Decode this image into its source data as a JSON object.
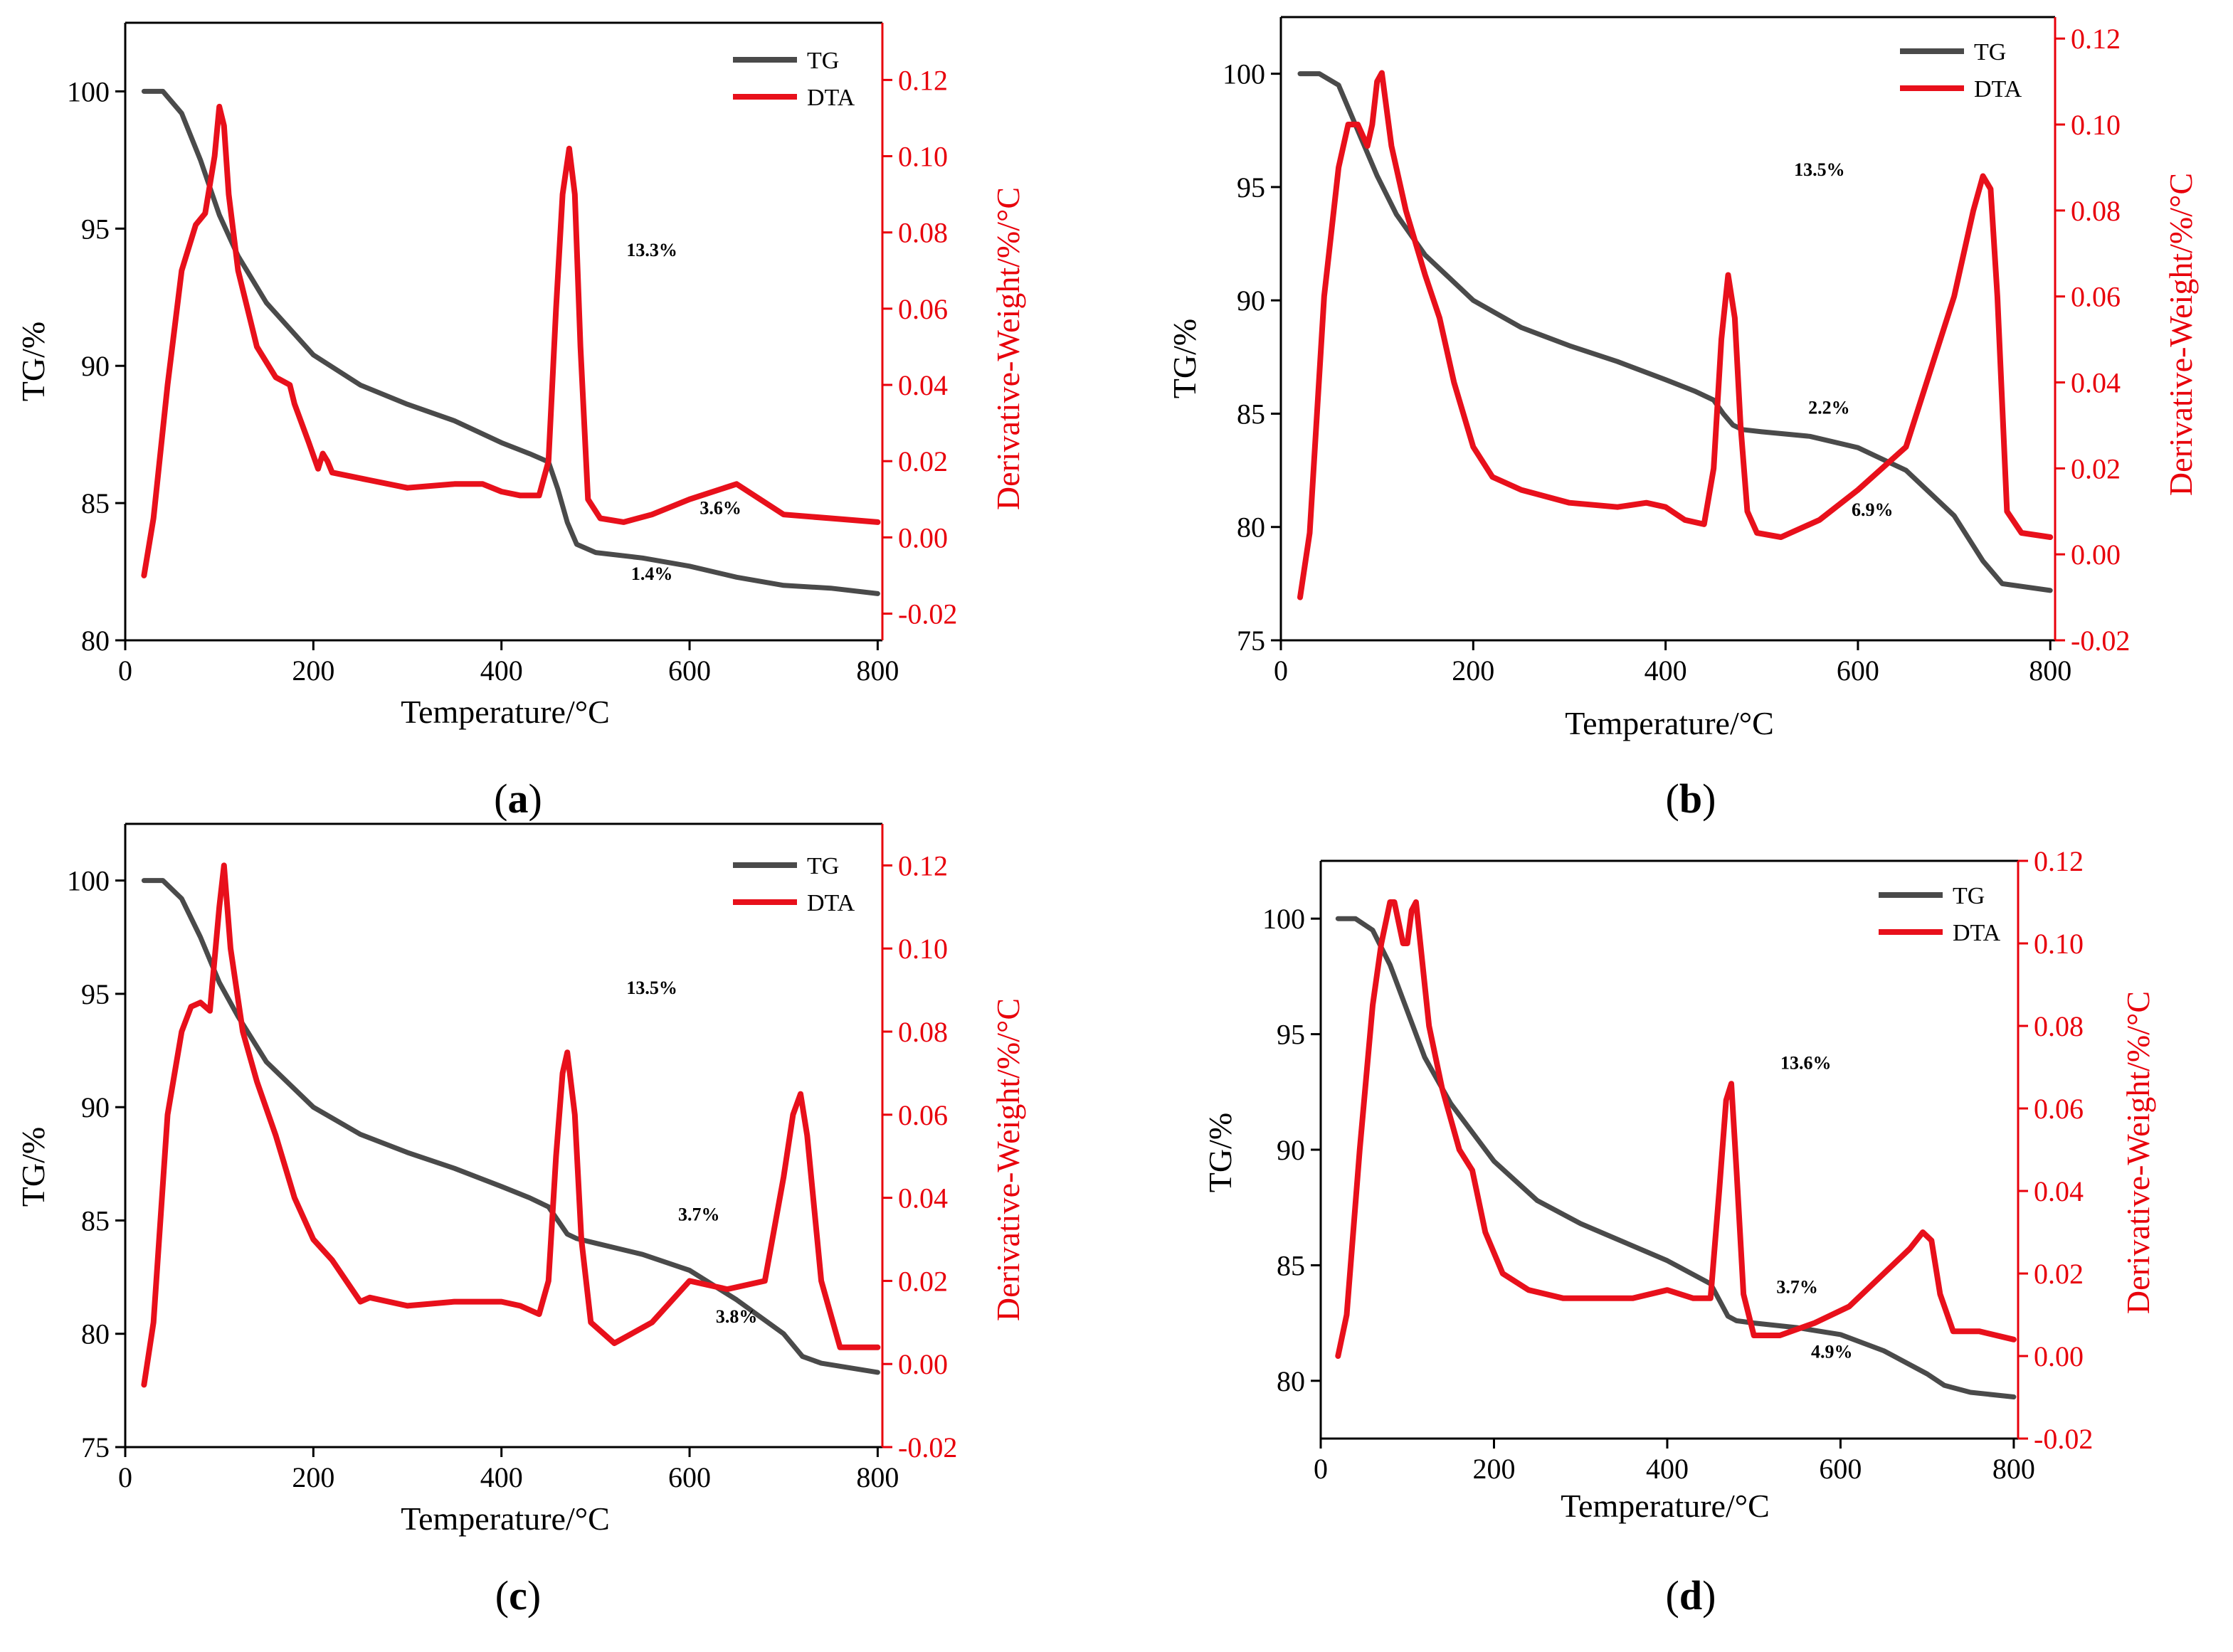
{
  "colors": {
    "tg": "#4a4a4a",
    "dta": "#e8101b",
    "axis": "#000000",
    "right_axis": "#e8000b"
  },
  "chart_data": [
    {
      "panel": "a",
      "caption": {
        "open": "(",
        "letter": "a",
        "close": ")"
      },
      "type": "line",
      "xlabel": "Temperature/°C",
      "ylabel_left": "TG/%",
      "ylabel_right": "Derivative-Weight/%/°C",
      "xlim": [
        0,
        805
      ],
      "ylim_left": [
        80,
        102.5
      ],
      "ylim_right": [
        -0.027,
        0.135
      ],
      "xticks": [
        0,
        200,
        400,
        600,
        800
      ],
      "yticks_left": [
        80,
        85,
        90,
        95,
        100
      ],
      "yticks_right": [
        "-0.02",
        "0.00",
        "0.02",
        "0.04",
        "0.06",
        "0.08",
        "0.10",
        "0.12"
      ],
      "legend": [
        "TG",
        "DTA"
      ],
      "series": [
        {
          "name": "TG",
          "axis": "left",
          "x": [
            20,
            40,
            60,
            80,
            100,
            120,
            150,
            200,
            250,
            300,
            350,
            400,
            430,
            450,
            460,
            470,
            480,
            500,
            550,
            600,
            650,
            700,
            750,
            800
          ],
          "y": [
            100,
            100,
            99.2,
            97.5,
            95.5,
            94,
            92.3,
            90.4,
            89.3,
            88.6,
            88,
            87.2,
            86.8,
            86.5,
            85.5,
            84.3,
            83.5,
            83.2,
            83,
            82.7,
            82.3,
            82,
            81.9,
            81.7
          ]
        },
        {
          "name": "DTA",
          "axis": "right",
          "x": [
            20,
            30,
            45,
            60,
            75,
            85,
            95,
            100,
            105,
            110,
            120,
            140,
            160,
            175,
            180,
            195,
            205,
            210,
            215,
            220,
            240,
            260,
            300,
            350,
            380,
            400,
            420,
            440,
            450,
            458,
            465,
            472,
            478,
            484,
            492,
            505,
            530,
            560,
            600,
            650,
            700,
            750,
            800
          ],
          "y": [
            -0.01,
            0.005,
            0.04,
            0.07,
            0.082,
            0.085,
            0.1,
            0.113,
            0.108,
            0.09,
            0.07,
            0.05,
            0.042,
            0.04,
            0.035,
            0.025,
            0.018,
            0.022,
            0.02,
            0.017,
            0.016,
            0.015,
            0.013,
            0.014,
            0.014,
            0.012,
            0.011,
            0.011,
            0.02,
            0.06,
            0.09,
            0.102,
            0.09,
            0.05,
            0.01,
            0.005,
            0.004,
            0.006,
            0.01,
            0.014,
            0.006,
            0.005,
            0.004
          ]
        }
      ],
      "annotations": [
        {
          "label": "13.3%",
          "x": 560,
          "y": 94
        },
        {
          "label": "3.6%",
          "x": 633,
          "y": 84.6
        },
        {
          "label": "1.4%",
          "x": 560,
          "y": 82.2
        }
      ]
    },
    {
      "panel": "b",
      "caption": {
        "open": "(",
        "letter": "b",
        "close": ")"
      },
      "type": "line",
      "xlabel": "Temperature/°C",
      "ylabel_left": "TG/%",
      "ylabel_right": "Derivative-Weight/%/°C",
      "xlim": [
        0,
        805
      ],
      "ylim_left": [
        75,
        102.5
      ],
      "ylim_right": [
        -0.02,
        0.125
      ],
      "xticks": [
        0,
        200,
        400,
        600,
        800
      ],
      "yticks_left": [
        75,
        80,
        85,
        90,
        95,
        100
      ],
      "yticks_right": [
        "-0.02",
        "0.00",
        "0.02",
        "0.04",
        "0.06",
        "0.08",
        "0.10",
        "0.12"
      ],
      "legend": [
        "TG",
        "DTA"
      ],
      "series": [
        {
          "name": "TG",
          "axis": "left",
          "x": [
            20,
            40,
            60,
            80,
            100,
            120,
            150,
            200,
            250,
            300,
            350,
            400,
            430,
            450,
            460,
            470,
            480,
            500,
            550,
            600,
            650,
            700,
            730,
            750,
            800
          ],
          "y": [
            100,
            100,
            99.5,
            97.5,
            95.5,
            93.8,
            92,
            90,
            88.8,
            88,
            87.3,
            86.5,
            86,
            85.6,
            85,
            84.5,
            84.3,
            84.2,
            84,
            83.5,
            82.5,
            80.5,
            78.5,
            77.5,
            77.2
          ]
        },
        {
          "name": "DTA",
          "axis": "right",
          "x": [
            20,
            30,
            45,
            60,
            70,
            80,
            90,
            95,
            100,
            105,
            115,
            130,
            150,
            165,
            180,
            200,
            220,
            250,
            300,
            350,
            380,
            400,
            420,
            440,
            450,
            458,
            465,
            472,
            478,
            485,
            495,
            520,
            560,
            600,
            650,
            700,
            720,
            730,
            738,
            745,
            755,
            770,
            800
          ],
          "y": [
            -0.01,
            0.005,
            0.06,
            0.09,
            0.1,
            0.1,
            0.095,
            0.1,
            0.11,
            0.112,
            0.095,
            0.08,
            0.065,
            0.055,
            0.04,
            0.025,
            0.018,
            0.015,
            0.012,
            0.011,
            0.012,
            0.011,
            0.008,
            0.007,
            0.02,
            0.05,
            0.065,
            0.055,
            0.03,
            0.01,
            0.005,
            0.004,
            0.008,
            0.015,
            0.025,
            0.06,
            0.08,
            0.088,
            0.085,
            0.06,
            0.01,
            0.005,
            0.004
          ]
        }
      ],
      "annotations": [
        {
          "label": "13.5%",
          "x": 560,
          "y": 95.5
        },
        {
          "label": "2.2%",
          "x": 570,
          "y": 85
        },
        {
          "label": "6.9%",
          "x": 615,
          "y": 80.5
        }
      ]
    },
    {
      "panel": "c",
      "caption": {
        "open": "(",
        "letter": "c",
        "close": ")"
      },
      "type": "line",
      "xlabel": "Temperature/°C",
      "ylabel_left": "TG/%",
      "ylabel_right": "Derivative-Weight/%/°C",
      "xlim": [
        0,
        805
      ],
      "ylim_left": [
        75,
        102.5
      ],
      "ylim_right": [
        -0.02,
        0.13
      ],
      "xticks": [
        0,
        200,
        400,
        600,
        800
      ],
      "yticks_left": [
        75,
        80,
        85,
        90,
        95,
        100
      ],
      "yticks_right": [
        "-0.02",
        "0.00",
        "0.02",
        "0.04",
        "0.06",
        "0.08",
        "0.10",
        "0.12"
      ],
      "legend": [
        "TG",
        "DTA"
      ],
      "series": [
        {
          "name": "TG",
          "axis": "left",
          "x": [
            20,
            40,
            60,
            80,
            100,
            120,
            150,
            200,
            250,
            300,
            350,
            400,
            430,
            450,
            460,
            470,
            480,
            500,
            550,
            600,
            650,
            700,
            720,
            740,
            800
          ],
          "y": [
            100,
            100,
            99.2,
            97.5,
            95.5,
            94,
            92,
            90,
            88.8,
            88,
            87.3,
            86.5,
            86,
            85.6,
            85,
            84.4,
            84.2,
            84,
            83.5,
            82.8,
            81.5,
            80,
            79,
            78.7,
            78.3
          ]
        },
        {
          "name": "DTA",
          "axis": "right",
          "x": [
            20,
            30,
            45,
            60,
            70,
            80,
            90,
            100,
            105,
            112,
            125,
            140,
            160,
            180,
            200,
            220,
            250,
            260,
            300,
            350,
            400,
            420,
            440,
            450,
            458,
            465,
            470,
            478,
            485,
            495,
            520,
            560,
            600,
            640,
            680,
            700,
            710,
            718,
            725,
            740,
            760,
            800
          ],
          "y": [
            -0.005,
            0.01,
            0.06,
            0.08,
            0.086,
            0.087,
            0.085,
            0.11,
            0.12,
            0.1,
            0.08,
            0.068,
            0.055,
            0.04,
            0.03,
            0.025,
            0.015,
            0.016,
            0.014,
            0.015,
            0.015,
            0.014,
            0.012,
            0.02,
            0.05,
            0.07,
            0.075,
            0.06,
            0.03,
            0.01,
            0.005,
            0.01,
            0.02,
            0.018,
            0.02,
            0.045,
            0.06,
            0.065,
            0.055,
            0.02,
            0.004,
            0.004
          ]
        }
      ],
      "annotations": [
        {
          "label": "13.5%",
          "x": 560,
          "y": 95
        },
        {
          "label": "3.7%",
          "x": 610,
          "y": 85
        },
        {
          "label": "3.8%",
          "x": 650,
          "y": 80.5
        }
      ]
    },
    {
      "panel": "d",
      "caption": {
        "open": "(",
        "letter": "d",
        "close": ")"
      },
      "type": "line",
      "xlabel": "Temperature/°C",
      "ylabel_left": "TG/%",
      "ylabel_right": "Derivative-Weight/%/°C",
      "xlim": [
        0,
        805
      ],
      "ylim_left": [
        77.5,
        102.5
      ],
      "ylim_right": [
        -0.02,
        0.12
      ],
      "xticks": [
        0,
        200,
        400,
        600,
        800
      ],
      "yticks_left": [
        80,
        85,
        90,
        95,
        100
      ],
      "yticks_right": [
        "-0.02",
        "0.00",
        "0.02",
        "0.04",
        "0.06",
        "0.08",
        "0.10",
        "0.12"
      ],
      "legend": [
        "TG",
        "DTA"
      ],
      "series": [
        {
          "name": "TG",
          "axis": "left",
          "x": [
            20,
            40,
            60,
            80,
            100,
            120,
            150,
            200,
            250,
            300,
            350,
            400,
            430,
            450,
            460,
            470,
            480,
            500,
            550,
            600,
            650,
            700,
            720,
            750,
            800
          ],
          "y": [
            100,
            100,
            99.5,
            98,
            96,
            94,
            92,
            89.5,
            87.8,
            86.8,
            86,
            85.2,
            84.6,
            84.2,
            83.5,
            82.8,
            82.6,
            82.5,
            82.3,
            82,
            81.3,
            80.3,
            79.8,
            79.5,
            79.3
          ]
        },
        {
          "name": "DTA",
          "axis": "right",
          "x": [
            20,
            30,
            45,
            60,
            70,
            80,
            85,
            90,
            95,
            100,
            105,
            110,
            115,
            125,
            140,
            160,
            175,
            190,
            210,
            240,
            280,
            320,
            360,
            400,
            430,
            450,
            460,
            468,
            474,
            480,
            488,
            500,
            530,
            570,
            610,
            650,
            680,
            695,
            705,
            715,
            730,
            760,
            800
          ],
          "y": [
            0,
            0.01,
            0.05,
            0.085,
            0.1,
            0.11,
            0.11,
            0.105,
            0.1,
            0.1,
            0.108,
            0.11,
            0.1,
            0.08,
            0.065,
            0.05,
            0.045,
            0.03,
            0.02,
            0.016,
            0.014,
            0.014,
            0.014,
            0.016,
            0.014,
            0.014,
            0.04,
            0.062,
            0.066,
            0.045,
            0.015,
            0.005,
            0.005,
            0.008,
            0.012,
            0.02,
            0.026,
            0.03,
            0.028,
            0.015,
            0.006,
            0.006,
            0.004
          ]
        }
      ],
      "annotations": [
        {
          "label": "13.6%",
          "x": 560,
          "y": 93.5
        },
        {
          "label": "3.7%",
          "x": 550,
          "y": 83.8
        },
        {
          "label": "4.9%",
          "x": 590,
          "y": 81
        }
      ]
    }
  ]
}
